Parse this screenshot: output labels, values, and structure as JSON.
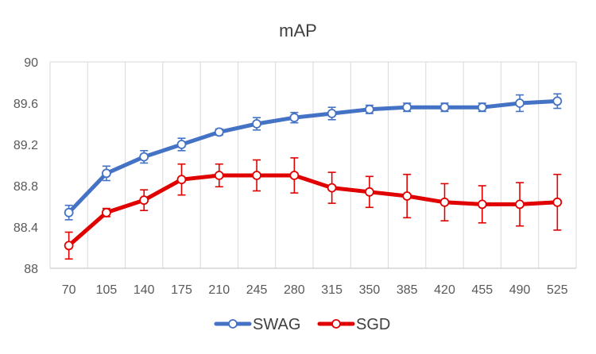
{
  "chart_data": {
    "type": "line",
    "title": "mAP",
    "xlabel": "",
    "ylabel": "",
    "x": [
      70,
      105,
      140,
      175,
      210,
      245,
      280,
      315,
      350,
      385,
      420,
      455,
      490,
      525
    ],
    "ylim": [
      88,
      90
    ],
    "yticks": [
      "88",
      "88.4",
      "88.8",
      "89.2",
      "89.6",
      "90"
    ],
    "grid": "vertical",
    "legend": "bottom",
    "series": [
      {
        "name": "SWAG",
        "color": "#4472C4",
        "values": [
          88.54,
          88.92,
          89.08,
          89.2,
          89.32,
          89.4,
          89.46,
          89.5,
          89.54,
          89.56,
          89.56,
          89.56,
          89.6,
          89.62
        ],
        "error": [
          0.07,
          0.07,
          0.06,
          0.06,
          0.03,
          0.06,
          0.05,
          0.06,
          0.04,
          0.04,
          0.04,
          0.04,
          0.08,
          0.07
        ]
      },
      {
        "name": "SGD",
        "color": "#E00000",
        "values": [
          88.22,
          88.54,
          88.66,
          88.86,
          88.9,
          88.9,
          88.9,
          88.78,
          88.74,
          88.7,
          88.64,
          88.62,
          88.62,
          88.64
        ],
        "error": [
          0.13,
          0.04,
          0.1,
          0.15,
          0.11,
          0.15,
          0.17,
          0.15,
          0.15,
          0.21,
          0.18,
          0.18,
          0.21,
          0.27
        ]
      }
    ]
  }
}
